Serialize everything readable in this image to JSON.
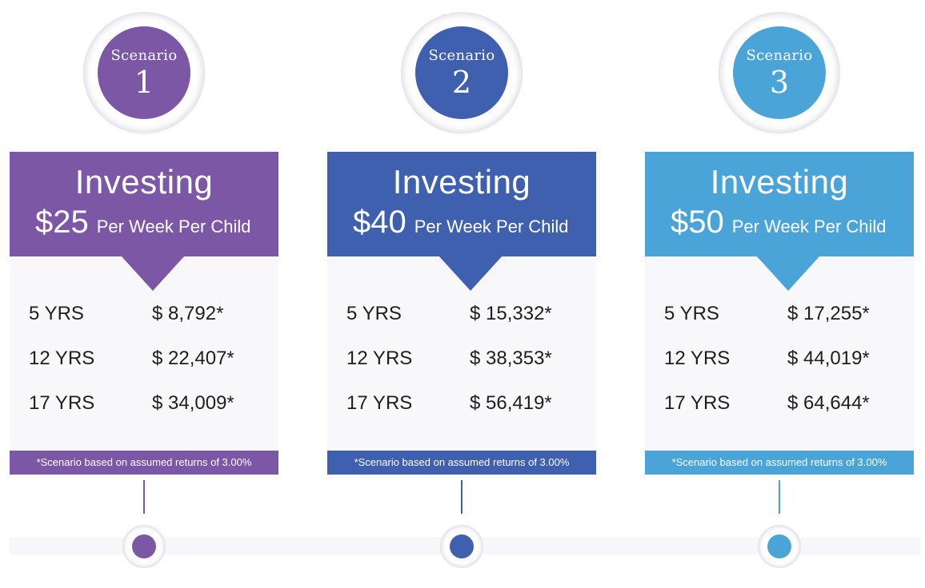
{
  "scenarios": [
    {
      "badge_word": "Scenario",
      "badge_number": "1",
      "title": "Investing",
      "amount": "$25",
      "period": "Per Week Per Child",
      "rows": [
        {
          "label": "5 YRS",
          "value": "$ 8,792*"
        },
        {
          "label": "12 YRS",
          "value": "$ 22,407*"
        },
        {
          "label": "17 YRS",
          "value": "$ 34,009*"
        }
      ],
      "footnote": "*Scenario based on assumed returns of 3.00%",
      "color": "#7b57a6"
    },
    {
      "badge_word": "Scenario",
      "badge_number": "2",
      "title": "Investing",
      "amount": "$40",
      "period": "Per Week Per Child",
      "rows": [
        {
          "label": "5 YRS",
          "value": "$ 15,332*"
        },
        {
          "label": "12 YRS",
          "value": "$ 38,353*"
        },
        {
          "label": "17 YRS",
          "value": "$ 56,419*"
        }
      ],
      "footnote": "*Scenario based on assumed returns of 3.00%",
      "color": "#3f5faf"
    },
    {
      "badge_word": "Scenario",
      "badge_number": "3",
      "title": "Investing",
      "amount": "$50",
      "period": "Per Week Per Child",
      "rows": [
        {
          "label": "5 YRS",
          "value": "$ 17,255*"
        },
        {
          "label": "12 YRS",
          "value": "$ 44,019*"
        },
        {
          "label": "17 YRS",
          "value": "$ 64,644*"
        }
      ],
      "footnote": "*Scenario based on assumed returns of 3.00%",
      "color": "#4aa4d8"
    }
  ]
}
